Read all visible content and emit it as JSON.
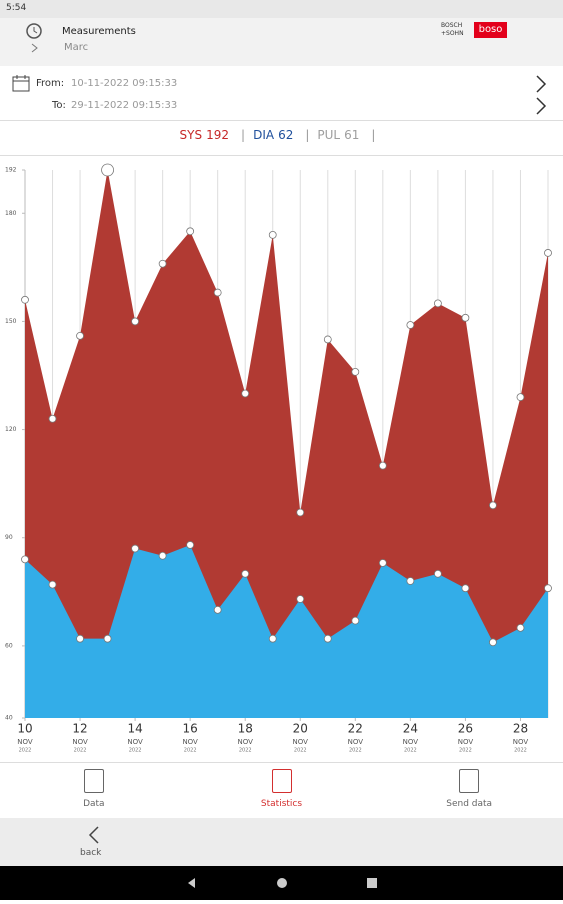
{
  "status_bar": {
    "time": "5:54"
  },
  "header": {
    "title": "Measurements",
    "user": "Marc",
    "logo_brand": "BOSCH +SOHN",
    "logo_name": "boso"
  },
  "period": {
    "from_label": "From:",
    "from": "10-11-2022 09:15:33",
    "to_label": "To:",
    "to": "29-11-2022 09:15:33"
  },
  "readout": [
    {
      "name": "SYS",
      "value": 192,
      "color": "#c62828"
    },
    {
      "name": "DIA",
      "value": 62,
      "color": "#1e4f9c"
    },
    {
      "name": "PUL",
      "value": 61,
      "color": "#9e9e9e"
    }
  ],
  "chart_data": {
    "type": "area",
    "x": [
      10,
      11,
      12,
      13,
      14,
      15,
      16,
      17,
      18,
      19,
      20,
      21,
      22,
      23,
      24,
      25,
      26,
      27,
      28,
      29
    ],
    "xlim": [
      10,
      29
    ],
    "xticks": [
      10,
      12,
      14,
      16,
      18,
      20,
      22,
      24,
      26,
      28
    ],
    "x_tick_month": "NOV",
    "x_tick_year": "2022",
    "ylim": [
      40,
      192
    ],
    "yticks": [
      40,
      60,
      90,
      120,
      150,
      180,
      192
    ],
    "series": [
      {
        "name": "SYS",
        "color": "#b13a33",
        "values": [
          156,
          123,
          146,
          192,
          150,
          166,
          175,
          158,
          130,
          174,
          97,
          145,
          136,
          110,
          149,
          155,
          151,
          99,
          129,
          169
        ]
      },
      {
        "name": "DIA",
        "color": "#33ade8",
        "values": [
          84,
          77,
          62,
          62,
          87,
          85,
          88,
          70,
          80,
          62,
          73,
          62,
          67,
          83,
          78,
          80,
          76,
          61,
          65,
          76
        ]
      }
    ],
    "selected_index": 3,
    "grid": true
  },
  "tabs": [
    {
      "label": "Data"
    },
    {
      "label": "Statistics",
      "active": true
    },
    {
      "label": "Send data"
    }
  ],
  "back": "back"
}
